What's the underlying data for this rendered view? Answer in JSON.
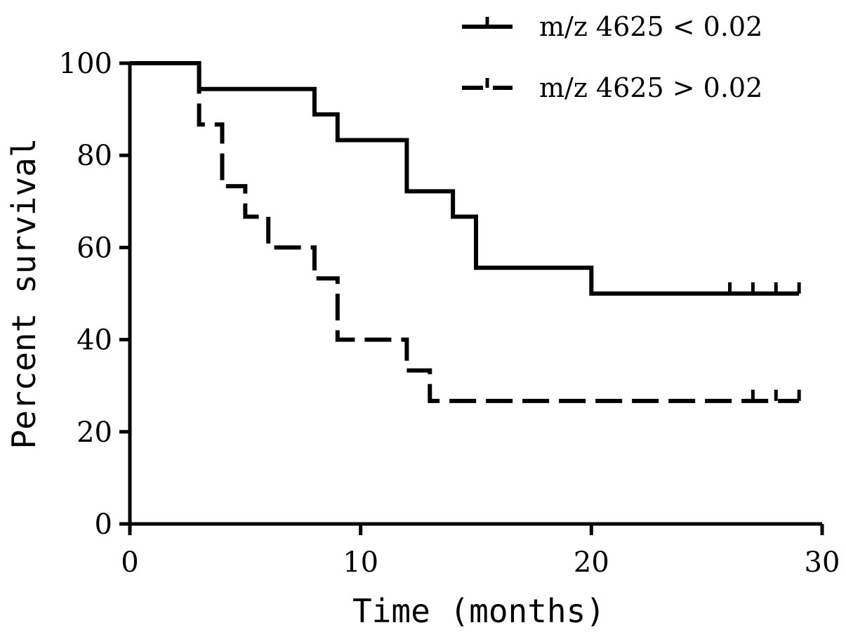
{
  "chart_data": {
    "type": "line",
    "subtype": "kaplan-meier-step",
    "xlabel": "Time (months)",
    "ylabel": "Percent survival",
    "xlim": [
      0,
      30
    ],
    "ylim": [
      0,
      100
    ],
    "xticks": [
      "0",
      "10",
      "20",
      "30"
    ],
    "yticks": [
      "0",
      "20",
      "40",
      "60",
      "80",
      "100"
    ],
    "grid": false,
    "legend_position": "top-right",
    "series": [
      {
        "name": "m/z 4625 < 0.02",
        "style": "solid",
        "color": "#000000",
        "steps": [
          {
            "x": 0,
            "y": 100
          },
          {
            "x": 3,
            "y": 94.4
          },
          {
            "x": 8,
            "y": 88.9
          },
          {
            "x": 9,
            "y": 83.3
          },
          {
            "x": 12,
            "y": 72.2
          },
          {
            "x": 14,
            "y": 66.7
          },
          {
            "x": 15,
            "y": 55.6
          },
          {
            "x": 20,
            "y": 50.0
          }
        ],
        "end_x": 29,
        "censored": [
          26,
          27,
          28,
          29
        ]
      },
      {
        "name": "m/z 4625 > 0.02",
        "style": "dashed",
        "color": "#000000",
        "steps": [
          {
            "x": 0,
            "y": 100
          },
          {
            "x": 3,
            "y": 86.7
          },
          {
            "x": 4,
            "y": 73.3
          },
          {
            "x": 5,
            "y": 66.7
          },
          {
            "x": 6,
            "y": 60.0
          },
          {
            "x": 8,
            "y": 53.3
          },
          {
            "x": 9,
            "y": 40.0
          },
          {
            "x": 12,
            "y": 33.3
          },
          {
            "x": 13,
            "y": 26.7
          }
        ],
        "end_x": 29,
        "censored": [
          27,
          28,
          29
        ]
      }
    ]
  }
}
